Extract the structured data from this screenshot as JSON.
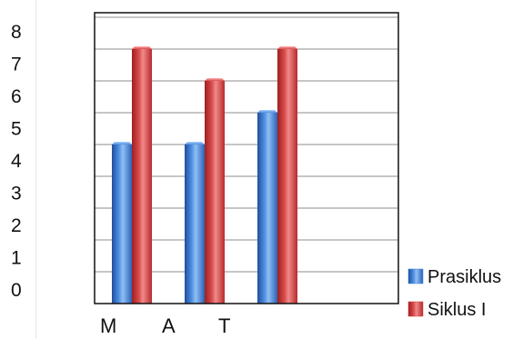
{
  "chart_data": {
    "type": "bar",
    "title": "",
    "xlabel": "",
    "ylabel": "",
    "categories": [
      "M",
      "A",
      "T"
    ],
    "y_ticks": [
      "0",
      "1",
      "2",
      "3",
      "4",
      "5",
      "6",
      "7",
      "8"
    ],
    "ylim": [
      0,
      8
    ],
    "grid": true,
    "legend_position": "bottom-right",
    "series": [
      {
        "name": "Prasiklus",
        "color": "#3f7fd0",
        "values": [
          5,
          5,
          6
        ]
      },
      {
        "name": "Siklus I",
        "color": "#d23c3c",
        "values": [
          8,
          7,
          8
        ]
      }
    ]
  }
}
